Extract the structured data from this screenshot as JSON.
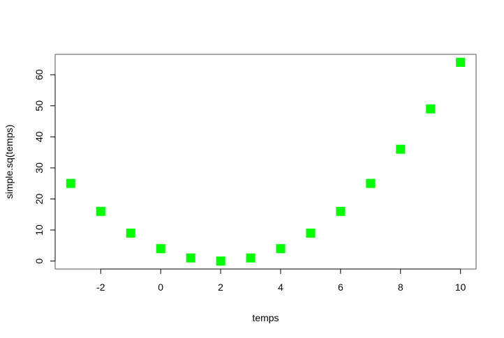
{
  "chart_data": {
    "type": "scatter",
    "title": "",
    "xlabel": "temps",
    "ylabel": "simple.sq(temps)",
    "x": [
      -3,
      -2,
      -1,
      0,
      1,
      2,
      3,
      4,
      5,
      6,
      7,
      8,
      9,
      10
    ],
    "y": [
      25,
      16,
      9,
      4,
      1,
      0,
      1,
      4,
      9,
      16,
      25,
      36,
      49,
      64
    ],
    "xlim": [
      -3.52,
      10.52
    ],
    "ylim": [
      -2.56,
      66.56
    ],
    "xticks": [
      -2,
      0,
      2,
      4,
      6,
      8,
      10
    ],
    "xtick_labels": [
      "-2",
      "0",
      "2",
      "4",
      "6",
      "8",
      "10"
    ],
    "yticks": [
      0,
      10,
      20,
      30,
      40,
      50,
      60
    ],
    "ytick_labels": [
      "0",
      "10",
      "20",
      "30",
      "40",
      "50",
      "60"
    ],
    "grid": false,
    "marker": "square",
    "marker_color": "#00ff00"
  }
}
